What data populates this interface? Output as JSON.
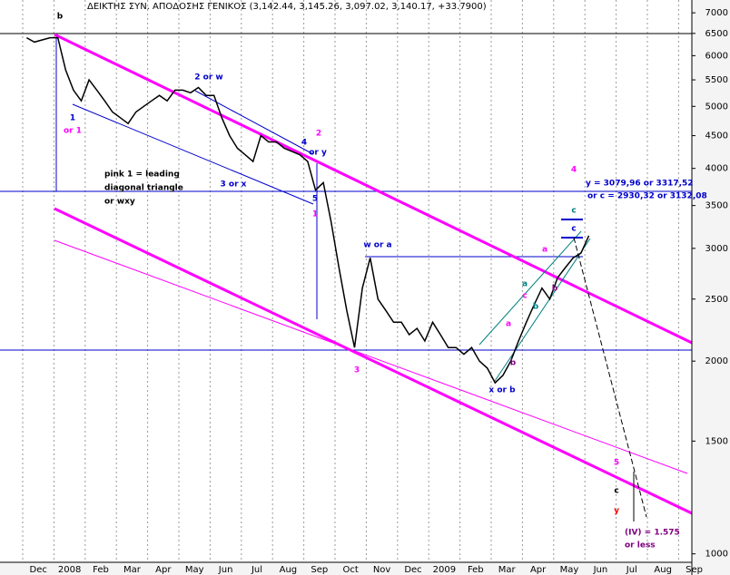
{
  "chart_data": {
    "type": "line",
    "title": "ΔΕΙΚΤΗΣ ΣΥΝ. ΑΠΟΔΟΣΗΣ ΓΕΝΙΚΟΣ (3,142.44, 3,145.26, 3,097.02, 3,140.17, +33.7900)",
    "categories": [
      "Dec",
      null,
      null,
      null,
      "2008",
      null,
      null,
      null,
      "Feb",
      null,
      null,
      null,
      "Mar",
      null,
      null,
      null,
      "Apr",
      null,
      null,
      null,
      "May",
      null,
      null,
      null,
      "Jun",
      null,
      null,
      null,
      "Jul",
      null,
      null,
      null,
      "Aug",
      null,
      null,
      null,
      "Sep",
      null,
      null,
      null,
      "Oct",
      null,
      null,
      null,
      "Nov",
      null,
      null,
      null,
      "Dec",
      null,
      null,
      null,
      "2009",
      null,
      null,
      null,
      "Feb",
      null,
      null,
      null,
      "Mar",
      null,
      null,
      null,
      "Apr",
      null,
      null,
      null,
      "May",
      null,
      null,
      null,
      "Jun",
      null,
      null,
      null,
      "Jul",
      null,
      null,
      null,
      "Aug",
      null,
      null,
      null,
      "Sep",
      null,
      null,
      null
    ],
    "series": [
      {
        "color": "#000000",
        "values": [
          6400,
          6300,
          6350,
          6400,
          6400,
          5700,
          5300,
          5100,
          5500,
          5300,
          5100,
          4900,
          4800,
          4700,
          4900,
          5000,
          5100,
          5200,
          5100,
          5300,
          5300,
          5250,
          5350,
          5200,
          5200,
          4800,
          4500,
          4300,
          4200,
          4100,
          4500,
          4400,
          4400,
          4300,
          4250,
          4200,
          4100,
          3700,
          3800,
          3300,
          2800,
          2400,
          2100,
          2600,
          2900,
          2500,
          2400,
          2300,
          2300,
          2200,
          2250,
          2150,
          2300,
          2200,
          2100,
          2100,
          2050,
          2100,
          2000,
          1950,
          1850,
          1900,
          2000,
          2150,
          2300,
          2450,
          2600,
          2500,
          2700,
          2800,
          2900,
          2950,
          3140,
          null,
          null,
          null,
          null,
          null,
          null,
          null,
          null,
          null,
          null,
          null,
          null,
          null,
          null,
          null
        ]
      }
    ],
    "ylim": [
      970,
      7330
    ],
    "yticks": [
      1000,
      1500,
      2000,
      2500,
      3000,
      3500,
      4000,
      4500,
      5000,
      5500,
      6000,
      6500,
      7000
    ],
    "log_scale": true,
    "grid": true,
    "annotations": [
      {
        "text": "b",
        "color": "#000000"
      },
      {
        "text": "1",
        "color": "#0000cc"
      },
      {
        "text": "or 1",
        "color": "#ff00ff"
      },
      {
        "text": "2 or w",
        "color": "#0000cc"
      },
      {
        "text": "pink 1 = leading",
        "color": "#000000"
      },
      {
        "text": "diagonal triangle",
        "color": "#000000"
      },
      {
        "text": "or wxy",
        "color": "#000000"
      },
      {
        "text": "3 or x",
        "color": "#0000cc"
      },
      {
        "text": "2",
        "color": "#ff00ff"
      },
      {
        "text": "4",
        "color": "#0000cc"
      },
      {
        "text": "or y",
        "color": "#0000cc"
      },
      {
        "text": "5",
        "color": "#0000cc"
      },
      {
        "text": "1",
        "color": "#ff00ff"
      },
      {
        "text": "w or a",
        "color": "#0000cc"
      },
      {
        "text": "3",
        "color": "#ff00ff"
      },
      {
        "text": "x or b",
        "color": "#0000cc"
      },
      {
        "text": "4",
        "color": "#ff00ff"
      },
      {
        "text": "y = 3079,96 or 3317,52",
        "color": "#0000cc"
      },
      {
        "text": "or c = 2930,32 or 3132,08",
        "color": "#0000cc"
      },
      {
        "text": "c",
        "color": "#008080"
      },
      {
        "text": "c",
        "color": "#0000cc"
      },
      {
        "text": "a",
        "color": "#ff00ff"
      },
      {
        "text": "a",
        "color": "#008080"
      },
      {
        "text": "a",
        "color": "#ff00ff"
      },
      {
        "text": "c",
        "color": "#ff00ff"
      },
      {
        "text": "b",
        "color": "#008080"
      },
      {
        "text": "b",
        "color": "#800080"
      },
      {
        "text": "b",
        "color": "#800080"
      },
      {
        "text": "5",
        "color": "#ff00ff"
      },
      {
        "text": "c",
        "color": "#000000"
      },
      {
        "text": "y",
        "color": "#ff0000"
      },
      {
        "text": "(IV) = 1.575",
        "color": "#800080"
      },
      {
        "text": "or  less",
        "color": "#800080"
      }
    ]
  }
}
